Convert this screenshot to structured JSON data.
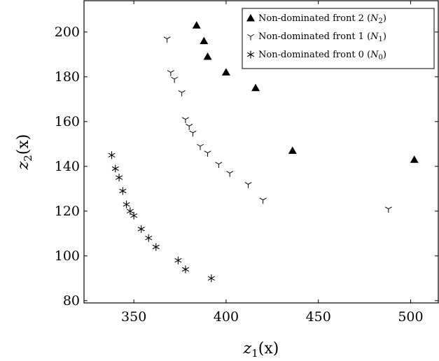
{
  "chart_data": {
    "type": "scatter",
    "xlabel": {
      "base": "z",
      "sub": "1",
      "arg": "(x)"
    },
    "ylabel": {
      "base": "z",
      "sub": "2",
      "arg": "(x)"
    },
    "xlim": [
      323,
      515
    ],
    "ylim": [
      79,
      214
    ],
    "x_ticks": [
      350,
      400,
      450,
      500
    ],
    "y_ticks": [
      80,
      100,
      120,
      140,
      160,
      180,
      200
    ],
    "x_tick_labels": [
      "350",
      "400",
      "450",
      "500"
    ],
    "y_tick_labels": [
      "80",
      "100",
      "120",
      "140",
      "160",
      "180",
      "200"
    ],
    "grid": false,
    "legend_position": "top-right",
    "series": [
      {
        "name": "Non-dominated front 2",
        "symbol_letter": "N",
        "symbol_sub": "2",
        "marker": "triangle",
        "color": "#000000",
        "x": [
          384,
          388,
          390,
          400,
          416,
          436,
          502
        ],
        "y": [
          203,
          196,
          189,
          182,
          175,
          147,
          143
        ]
      },
      {
        "name": "Non-dominated front 1",
        "symbol_letter": "N",
        "symbol_sub": "1",
        "marker": "tri-down",
        "color": "#000000",
        "x": [
          368,
          370,
          372,
          376,
          378,
          380,
          382,
          386,
          390,
          396,
          402,
          412,
          420,
          488
        ],
        "y": [
          197,
          182,
          179,
          173,
          161,
          158,
          155,
          149,
          146,
          141,
          137,
          132,
          125,
          121
        ]
      },
      {
        "name": "Non-dominated front 0",
        "symbol_letter": "N",
        "symbol_sub": "0",
        "marker": "asterisk",
        "color": "#000000",
        "x": [
          338,
          340,
          342,
          344,
          346,
          348,
          350,
          354,
          358,
          362,
          374,
          378,
          392
        ],
        "y": [
          145,
          139,
          135,
          129,
          123,
          120,
          118,
          112,
          108,
          104,
          98,
          94,
          90
        ]
      }
    ]
  }
}
